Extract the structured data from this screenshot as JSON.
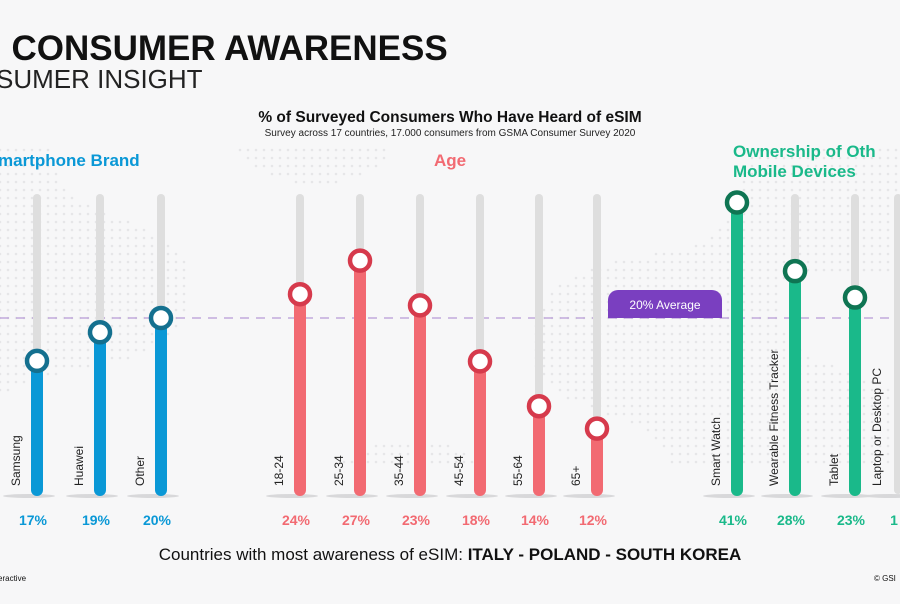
{
  "header": {
    "title": "I CONSUMER AWARENESS",
    "subtitle": "SUMER INSIGHT"
  },
  "chart_data": {
    "type": "bar",
    "title": "% of Surveyed Consumers Who Have Heard of eSIM",
    "subtitle": "Survey across 17 countries, 17.000 consumers from GSMA Consumer Survey 2020",
    "unit": "%",
    "average": {
      "value": 20,
      "label": "20% Average"
    },
    "groups": [
      {
        "name": "martphone Brand",
        "color": "#0a98d6",
        "knob_color": "#14708f",
        "categories": [
          "Samsung",
          "Huawei",
          "Other"
        ],
        "values": [
          17,
          19,
          20
        ],
        "value_labels": [
          "17%",
          "19%",
          "20%"
        ]
      },
      {
        "name": "Age",
        "color": "#f26a72",
        "knob_color": "#d63a4c",
        "categories": [
          "18-24",
          "25-34",
          "35-44",
          "45-54",
          "55-64",
          "65+"
        ],
        "values": [
          24,
          27,
          23,
          18,
          14,
          12
        ],
        "value_labels": [
          "24%",
          "27%",
          "23%",
          "18%",
          "14%",
          "12%"
        ]
      },
      {
        "name": "Ownership of Oth",
        "name_line2": "Mobile Devices",
        "color": "#1ab98a",
        "knob_color": "#0f7553",
        "categories": [
          "Smart Watch",
          "Wearable Fitness Tracker",
          "Tablet",
          "Laptop or Desktop PC"
        ],
        "values": [
          41,
          28,
          23,
          null
        ],
        "value_labels": [
          "41%",
          "28%",
          "23%",
          "1"
        ]
      }
    ]
  },
  "footer": {
    "countries_prefix": "Countries with most awareness of eSIM: ",
    "countries": "ITALY - POLAND - SOUTH KOREA",
    "left_note": "eractive",
    "right_note": "© GSI"
  }
}
